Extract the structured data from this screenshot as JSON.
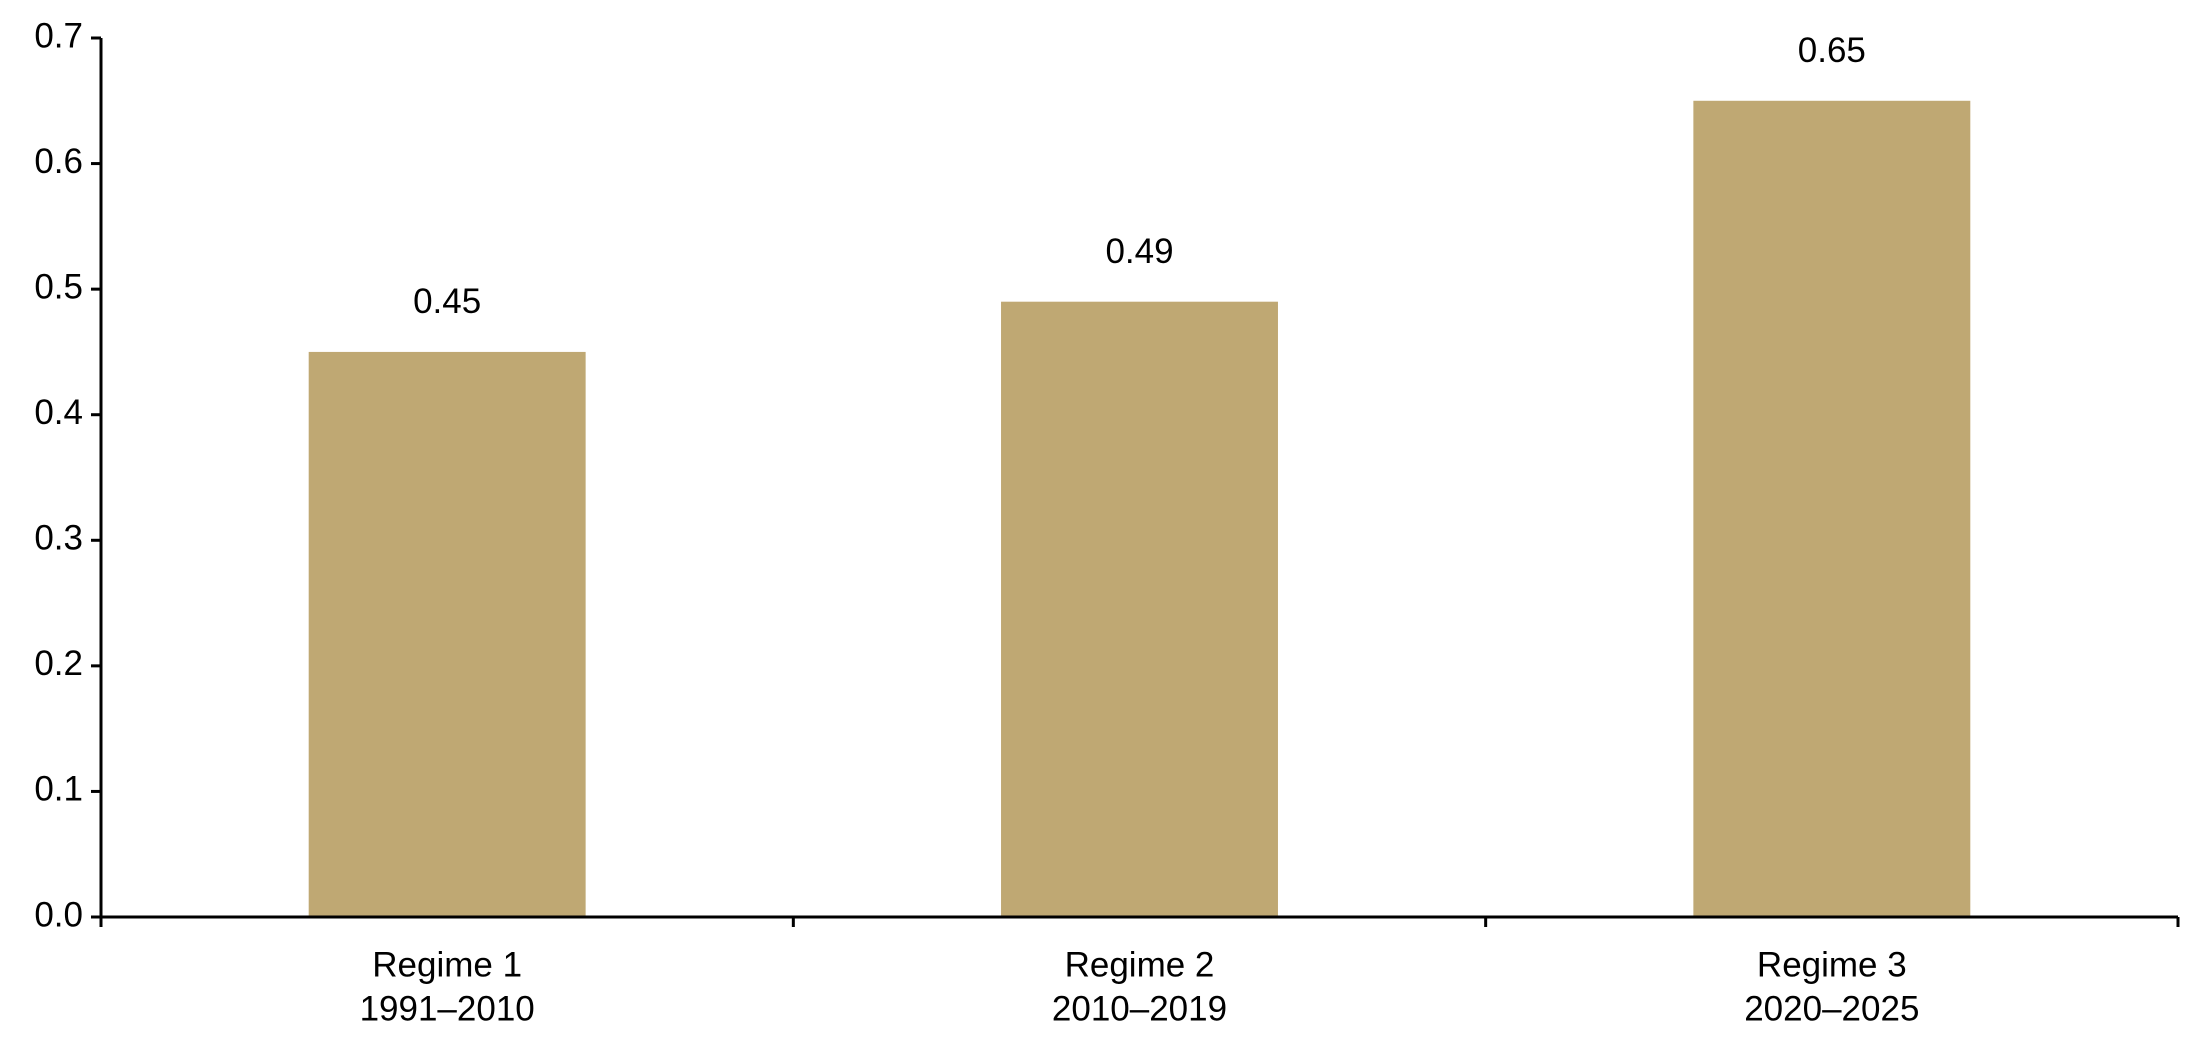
{
  "chart_data": {
    "type": "bar",
    "categories": [
      [
        "Regime 1",
        "1991–2010"
      ],
      [
        "Regime 2",
        "2010–2019"
      ],
      [
        "Regime 3",
        "2020–2025"
      ]
    ],
    "values": [
      0.45,
      0.49,
      0.65
    ],
    "color": "#bfa873",
    "ylim": [
      0,
      0.7
    ],
    "yticks": [
      {
        "value": 0,
        "label": "0.0"
      },
      0.1,
      0.2,
      0.3,
      0.4,
      0.5,
      0.6,
      0.7
    ],
    "grid": false
  }
}
